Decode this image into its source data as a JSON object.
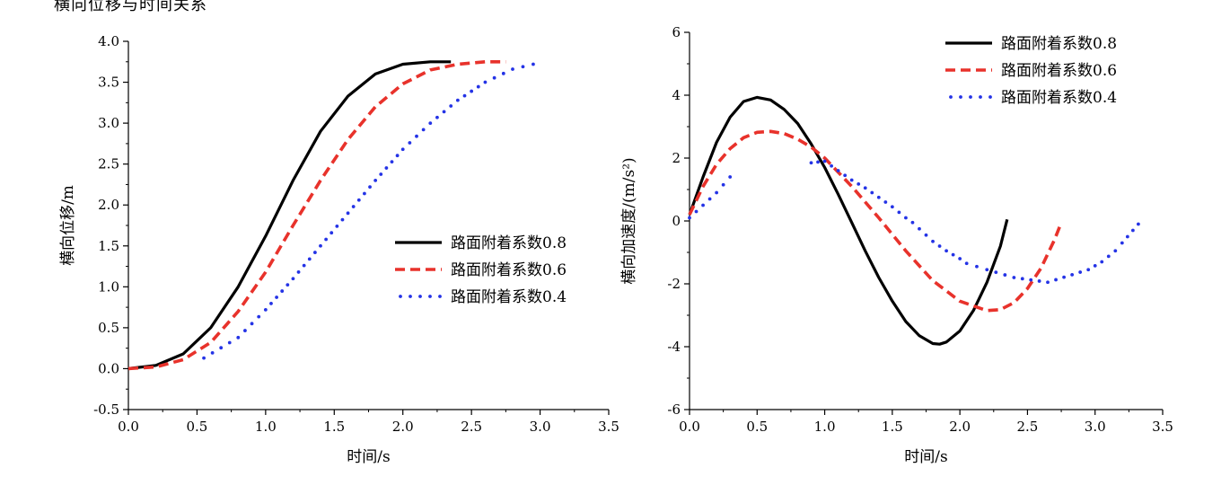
{
  "page": {
    "caption": "横向位移与时间关系"
  },
  "colors": {
    "s08": "#000000",
    "s06": "#e8322b",
    "s04": "#2433e6"
  },
  "chart_data": [
    {
      "type": "line",
      "xlabel": "时间/s",
      "ylabel": "横向位移/m",
      "xlim": [
        0,
        3.5
      ],
      "ylim": [
        -0.5,
        4.0
      ],
      "xticks": [
        0.0,
        0.5,
        1.0,
        1.5,
        2.0,
        2.5,
        3.0,
        3.5
      ],
      "xtick_labels": [
        "0.0",
        "0.5",
        "1.0",
        "1.5",
        "2.0",
        "2.5",
        "3.0",
        "3.5"
      ],
      "yticks": [
        -0.5,
        0.0,
        0.5,
        1.0,
        1.5,
        2.0,
        2.5,
        3.0,
        3.5,
        4.0
      ],
      "ytick_labels": [
        "-0.5",
        "0.0",
        "0.5",
        "1.0",
        "1.5",
        "2.0",
        "2.5",
        "3.0",
        "3.5",
        "4.0"
      ],
      "legend_position": "center-right",
      "series": [
        {
          "name": "路面附着系数0.8",
          "style": "solid",
          "x": [
            0.0,
            0.2,
            0.4,
            0.6,
            0.8,
            1.0,
            1.2,
            1.4,
            1.6,
            1.8,
            2.0,
            2.2,
            2.35
          ],
          "y": [
            0.0,
            0.04,
            0.18,
            0.5,
            1.0,
            1.62,
            2.3,
            2.9,
            3.33,
            3.6,
            3.72,
            3.75,
            3.75
          ]
        },
        {
          "name": "路面附着系数0.6",
          "style": "dashed",
          "x": [
            0.0,
            0.2,
            0.4,
            0.6,
            0.8,
            1.0,
            1.2,
            1.4,
            1.6,
            1.8,
            2.0,
            2.2,
            2.4,
            2.6,
            2.75
          ],
          "y": [
            0.0,
            0.02,
            0.11,
            0.32,
            0.7,
            1.18,
            1.75,
            2.3,
            2.8,
            3.2,
            3.48,
            3.65,
            3.72,
            3.75,
            3.75
          ]
        },
        {
          "name": "路面附着系数0.4",
          "style": "dotted",
          "x": [
            0.55,
            0.8,
            1.0,
            1.2,
            1.4,
            1.6,
            1.8,
            2.0,
            2.2,
            2.4,
            2.6,
            2.8,
            2.95
          ],
          "y": [
            0.13,
            0.38,
            0.72,
            1.1,
            1.5,
            1.9,
            2.3,
            2.68,
            3.0,
            3.28,
            3.5,
            3.66,
            3.72
          ]
        }
      ]
    },
    {
      "type": "line",
      "xlabel": "时间/s",
      "ylabel": "横向加速度/(m/s²)",
      "xlim": [
        0,
        3.5
      ],
      "ylim": [
        -6,
        6
      ],
      "xticks": [
        0.0,
        0.5,
        1.0,
        1.5,
        2.0,
        2.5,
        3.0,
        3.5
      ],
      "xtick_labels": [
        "0.0",
        "0.5",
        "1.0",
        "1.5",
        "2.0",
        "2.5",
        "3.0",
        "3.5"
      ],
      "yticks": [
        -6,
        -4,
        -2,
        0,
        2,
        4,
        6
      ],
      "ytick_labels": [
        "-6",
        "-4",
        "-2",
        "0",
        "2",
        "4",
        "6"
      ],
      "legend_position": "top-right",
      "series": [
        {
          "name": "路面附着系数0.8",
          "style": "solid",
          "x": [
            0.0,
            0.1,
            0.2,
            0.3,
            0.4,
            0.5,
            0.6,
            0.7,
            0.8,
            0.9,
            1.0,
            1.1,
            1.2,
            1.3,
            1.4,
            1.5,
            1.6,
            1.7,
            1.8,
            1.85,
            1.9,
            2.0,
            2.1,
            2.2,
            2.3,
            2.35
          ],
          "y": [
            0.2,
            1.4,
            2.5,
            3.3,
            3.8,
            3.93,
            3.85,
            3.55,
            3.1,
            2.45,
            1.7,
            0.85,
            -0.05,
            -0.95,
            -1.8,
            -2.55,
            -3.2,
            -3.65,
            -3.9,
            -3.92,
            -3.85,
            -3.5,
            -2.85,
            -1.95,
            -0.8,
            0.05
          ]
        },
        {
          "name": "路面附着系数0.6",
          "style": "dashed",
          "x": [
            0.0,
            0.1,
            0.2,
            0.3,
            0.4,
            0.5,
            0.6,
            0.7,
            0.8,
            0.9,
            1.0,
            1.2,
            1.4,
            1.6,
            1.8,
            2.0,
            2.2,
            2.3,
            2.4,
            2.5,
            2.6,
            2.7,
            2.75
          ],
          "y": [
            0.2,
            1.1,
            1.8,
            2.3,
            2.65,
            2.82,
            2.85,
            2.78,
            2.6,
            2.35,
            2.0,
            1.1,
            0.1,
            -0.95,
            -1.9,
            -2.55,
            -2.85,
            -2.82,
            -2.6,
            -2.15,
            -1.5,
            -0.6,
            -0.05
          ]
        },
        {
          "name": "路面附着系数0.4",
          "style": "dotted",
          "x": [
            0.0,
            0.1,
            0.2,
            0.3,
            0.9,
            1.0,
            1.2,
            1.3,
            1.4,
            1.5,
            1.6,
            1.65,
            1.8,
            1.9,
            2.0,
            2.05,
            2.2,
            2.4,
            2.65,
            2.95,
            3.05,
            3.15,
            3.2,
            3.32
          ],
          "y": [
            0.1,
            0.5,
            0.9,
            1.4,
            1.85,
            1.9,
            1.3,
            1.05,
            0.75,
            0.45,
            0.1,
            -0.05,
            -0.65,
            -0.95,
            -1.2,
            -1.35,
            -1.55,
            -1.8,
            -1.95,
            -1.55,
            -1.3,
            -0.95,
            -0.7,
            -0.1
          ]
        }
      ]
    }
  ]
}
